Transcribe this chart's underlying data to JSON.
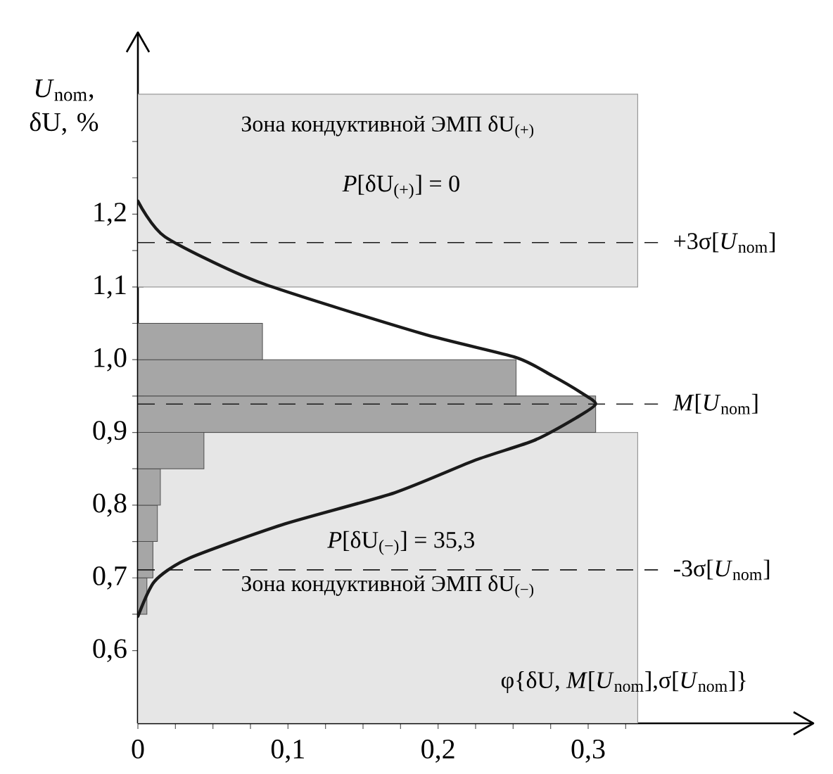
{
  "chart_data": {
    "type": "histogram",
    "orientation": "horizontal",
    "xlabel": "φ{δU, *M*[*U*$_{nom}$],σ[*U*$_{nom}$]}",
    "ylabel": "*U*$_{nom}$, δU, %",
    "series": [
      {
        "bins": [
          0.65,
          0.7,
          0.75,
          0.8,
          0.85,
          0.9,
          0.95,
          1.0,
          1.05
        ],
        "values": [
          0.006,
          0.01,
          0.013,
          0.015,
          0.044,
          0.305,
          0.252,
          0.083
        ],
        "color": "#a6a6a6"
      },
      {
        "type": "line",
        "x": [
          0.647,
          0.695,
          0.726,
          0.773,
          0.817,
          0.862,
          0.889,
          0.92,
          0.939,
          0.955,
          0.978,
          1.003,
          1.036,
          1.107,
          1.169,
          1.218
        ],
        "values": [
          0,
          0.011,
          0.033,
          0.096,
          0.171,
          0.225,
          0.264,
          0.292,
          0.305,
          0.295,
          0.276,
          0.252,
          0.189,
          0.08,
          0.018,
          0
        ],
        "color": "#1a1a1a"
      }
    ],
    "bands": [
      {
        "axis": "y",
        "from": 1.1,
        "to": 1.365,
        "label": "Зона кондуктивной ЭМП δU$_{(+)}$",
        "color": "#e6e6e6"
      },
      {
        "axis": "y",
        "from": 0.5,
        "to": 0.9,
        "label": "Зона кондуктивной ЭМП δU$_{(−)}$",
        "color": "#e6e6e6"
      }
    ],
    "annotations": [
      "*P*[δU$_{(+)}$] = 0",
      "*P*[δU$_{(−)}$] = 35,3"
    ],
    "ref_lines": [
      {
        "axis": "y",
        "value": 1.161,
        "label": "+3σ[*U*$_{nom}$]",
        "line_style": "dashed"
      },
      {
        "axis": "y",
        "value": 0.939,
        "label": "*M*[*U*$_{nom}$]",
        "line_style": "dashed"
      },
      {
        "axis": "y",
        "value": 0.711,
        "label": "-3σ[*U*$_{nom}$]",
        "line_style": "dashed"
      }
    ],
    "xlim": [
      0,
      0.45
    ],
    "ylim": [
      0.5,
      1.45
    ],
    "xticks": [
      0,
      {
        "value": 0.025,
        "label": null
      },
      {
        "value": 0.05,
        "label": null
      },
      {
        "value": 0.075,
        "label": null
      },
      {
        "value": 0.1,
        "label": "0,1"
      },
      {
        "value": 0.125,
        "label": null
      },
      {
        "value": 0.15,
        "label": null
      },
      {
        "value": 0.175,
        "label": null
      },
      {
        "value": 0.2,
        "label": "0,2"
      },
      {
        "value": 0.225,
        "label": null
      },
      {
        "value": 0.25,
        "label": null
      },
      {
        "value": 0.275,
        "label": null
      },
      {
        "value": 0.3,
        "label": "0,3"
      },
      {
        "value": 0.325,
        "label": null
      }
    ],
    "yticks": [
      {
        "value": 0.6,
        "label": "0,6"
      },
      {
        "value": 0.65,
        "label": null
      },
      {
        "value": 0.7,
        "label": "0,7"
      },
      {
        "value": 0.75,
        "label": null
      },
      {
        "value": 0.8,
        "label": "0,8"
      },
      {
        "value": 0.85,
        "label": null
      },
      {
        "value": 0.9,
        "label": "0,9"
      },
      {
        "value": 0.95,
        "label": null
      },
      {
        "value": 1.0,
        "label": "1,0"
      },
      {
        "value": 1.05,
        "label": null
      },
      {
        "value": 1.1,
        "label": "1,1"
      },
      {
        "value": 1.15,
        "label": null
      },
      {
        "value": 1.2,
        "label": "1,2"
      },
      {
        "value": 1.25,
        "label": null
      },
      {
        "value": 1.3,
        "label": null
      }
    ]
  }
}
